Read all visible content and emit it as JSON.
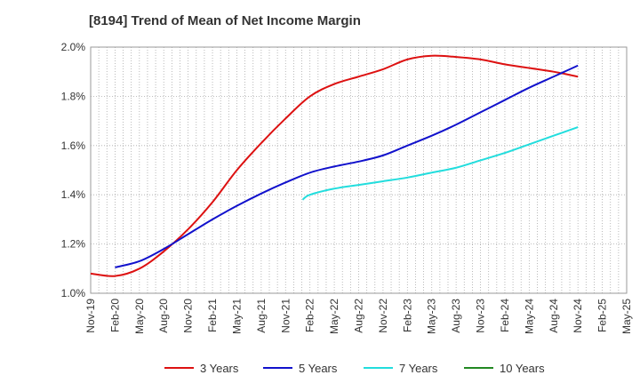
{
  "chart_data": {
    "type": "line",
    "title": "[8194]  Trend of Mean of Net Income Margin",
    "xlabel": "",
    "ylabel": "",
    "categories": [
      "Nov-19",
      "Feb-20",
      "May-20",
      "Aug-20",
      "Nov-20",
      "Feb-21",
      "May-21",
      "Aug-21",
      "Nov-21",
      "Feb-22",
      "May-22",
      "Aug-22",
      "Nov-22",
      "Feb-23",
      "May-23",
      "Aug-23",
      "Nov-23",
      "Feb-24",
      "May-24",
      "Aug-24",
      "Nov-24",
      "Feb-25",
      "May-25"
    ],
    "y_ticks": [
      "1.0%",
      "1.2%",
      "1.4%",
      "1.6%",
      "1.8%",
      "2.0%"
    ],
    "ylim": [
      1.0,
      2.0
    ],
    "grid": true,
    "legend_position": "bottom",
    "series": [
      {
        "name": "3 Years",
        "color": "#dd1111",
        "points": [
          [
            0,
            1.08
          ],
          [
            1,
            1.07
          ],
          [
            2,
            1.1
          ],
          [
            3,
            1.17
          ],
          [
            4,
            1.26
          ],
          [
            5,
            1.37
          ],
          [
            6,
            1.5
          ],
          [
            7,
            1.61
          ],
          [
            8,
            1.71
          ],
          [
            9,
            1.8
          ],
          [
            10,
            1.85
          ],
          [
            11,
            1.88
          ],
          [
            12,
            1.91
          ],
          [
            13,
            1.95
          ],
          [
            14,
            1.965
          ],
          [
            15,
            1.96
          ],
          [
            16,
            1.95
          ],
          [
            17,
            1.93
          ],
          [
            18,
            1.915
          ],
          [
            19,
            1.9
          ],
          [
            20,
            1.88
          ]
        ]
      },
      {
        "name": "5 Years",
        "color": "#1111cc",
        "points": [
          [
            1,
            1.105
          ],
          [
            2,
            1.13
          ],
          [
            3,
            1.18
          ],
          [
            4,
            1.24
          ],
          [
            5,
            1.3
          ],
          [
            6,
            1.355
          ],
          [
            7,
            1.405
          ],
          [
            8,
            1.45
          ],
          [
            9,
            1.49
          ],
          [
            10,
            1.515
          ],
          [
            11,
            1.535
          ],
          [
            12,
            1.56
          ],
          [
            13,
            1.6
          ],
          [
            14,
            1.64
          ],
          [
            15,
            1.685
          ],
          [
            16,
            1.735
          ],
          [
            17,
            1.785
          ],
          [
            18,
            1.835
          ],
          [
            19,
            1.88
          ],
          [
            20,
            1.925
          ]
        ]
      },
      {
        "name": "7 Years",
        "color": "#22dddd",
        "points": [
          [
            8.7,
            1.38
          ],
          [
            9,
            1.4
          ],
          [
            10,
            1.425
          ],
          [
            11,
            1.44
          ],
          [
            12,
            1.455
          ],
          [
            13,
            1.47
          ],
          [
            14,
            1.49
          ],
          [
            15,
            1.51
          ],
          [
            16,
            1.54
          ],
          [
            17,
            1.57
          ],
          [
            18,
            1.605
          ],
          [
            19,
            1.64
          ],
          [
            20,
            1.675
          ]
        ]
      },
      {
        "name": "10 Years",
        "color": "#228822",
        "points": []
      }
    ]
  }
}
